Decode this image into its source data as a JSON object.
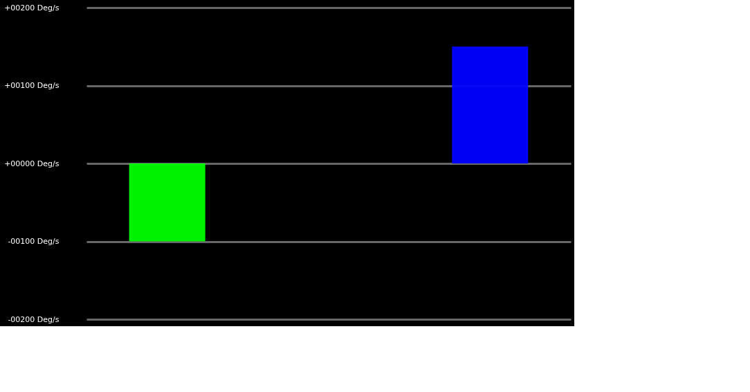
{
  "chart_data": {
    "type": "bar",
    "categories": [
      null,
      null,
      null
    ],
    "values": [
      -100,
      null,
      150
    ],
    "colors": [
      "#00ff00",
      "#000000",
      "#0000ff"
    ],
    "ylim": [
      -200,
      200
    ],
    "yticks": [
      {
        "value": 200,
        "label": "+00200 Deg/s"
      },
      {
        "value": 100,
        "label": "+00100 Deg/s"
      },
      {
        "value": 0,
        "label": "+00000 Deg/s"
      },
      {
        "value": -100,
        "label": "-00100 Deg/s"
      },
      {
        "value": -200,
        "label": "-00200 Deg/s"
      }
    ],
    "grid": "y"
  }
}
